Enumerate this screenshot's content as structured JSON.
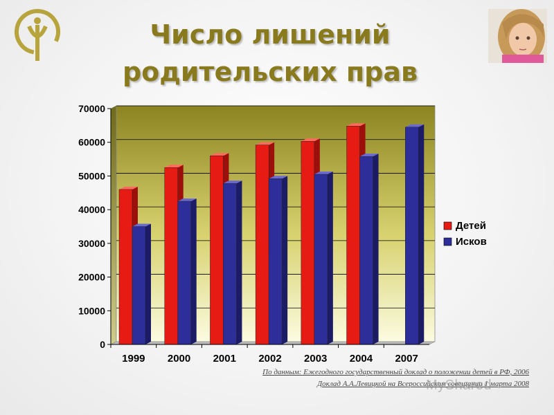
{
  "title": {
    "line1": "Число лишений",
    "line2": "родительских прав"
  },
  "source": {
    "line1": "По данным: Ежегодного государственный доклад о положении детей в РФ, 2006",
    "line2": "Доклад А.А.Левицкой на Всероссийском совещании 1 марта 2008"
  },
  "watermark": "MyShared",
  "colors": {
    "title": "#8a7a1e",
    "series_children": "#e51b14",
    "series_claims": "#2e2e9a"
  },
  "chart_data": {
    "type": "bar",
    "categories": [
      "1999",
      "2000",
      "2001",
      "2002",
      "2003",
      "2004",
      "2007"
    ],
    "series": [
      {
        "name": "Детей",
        "values": [
          46000,
          52500,
          56000,
          59200,
          60300,
          64800,
          null
        ]
      },
      {
        "name": "Исков",
        "values": [
          35000,
          42500,
          47800,
          49200,
          50500,
          55800,
          64500
        ]
      }
    ],
    "yticks": [
      "70000",
      "60000",
      "50000",
      "40000",
      "30000",
      "20000",
      "10000",
      "0"
    ],
    "ylim": [
      0,
      70000
    ],
    "grid": true,
    "legend": "right"
  }
}
